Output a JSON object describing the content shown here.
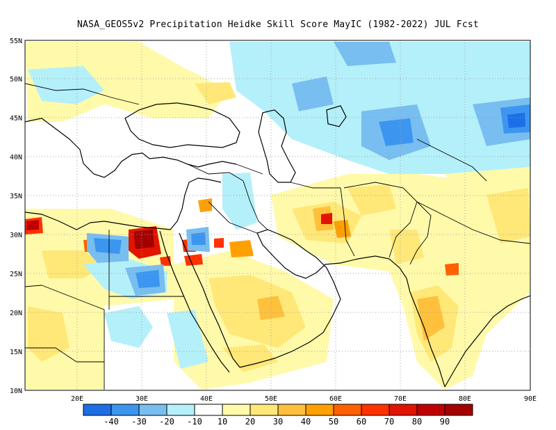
{
  "title": "NASA_GEOS5v2  Precipitation Heidke Skill Score MayIC (1982-2022) JUL Fcst",
  "map": {
    "lat_labels": [
      "55N",
      "50N",
      "45N",
      "40N",
      "35N",
      "30N",
      "25N",
      "20N",
      "15N",
      "10N"
    ],
    "lon_labels": [
      "20E",
      "30E",
      "40E",
      "50E",
      "60E",
      "70E",
      "80E",
      "90E"
    ]
  },
  "colorbar": {
    "labels": [
      "-40",
      "-30",
      "-20",
      "-10",
      "10",
      "20",
      "30",
      "40",
      "50",
      "60",
      "70",
      "80",
      "90"
    ],
    "colors": [
      "#1e6ee6",
      "#3c96f0",
      "#78bef0",
      "#b4f0fa",
      "#ffffff",
      "#fffaaa",
      "#ffe878",
      "#ffc03c",
      "#ffa000",
      "#ff6000",
      "#ff3200",
      "#e11400",
      "#c00000",
      "#a50000"
    ]
  },
  "palette": {
    "yellow_light": "#fffaaa",
    "yellow": "#ffe878",
    "orange_light": "#ffc03c",
    "orange": "#ffa000",
    "red_orange": "#ff6000",
    "red": "#e11400",
    "dark_red": "#a50000",
    "blue_pale": "#b4f0fa",
    "blue_light": "#78bef0",
    "blue": "#3c96f0",
    "blue_dark": "#1e6ee6"
  }
}
